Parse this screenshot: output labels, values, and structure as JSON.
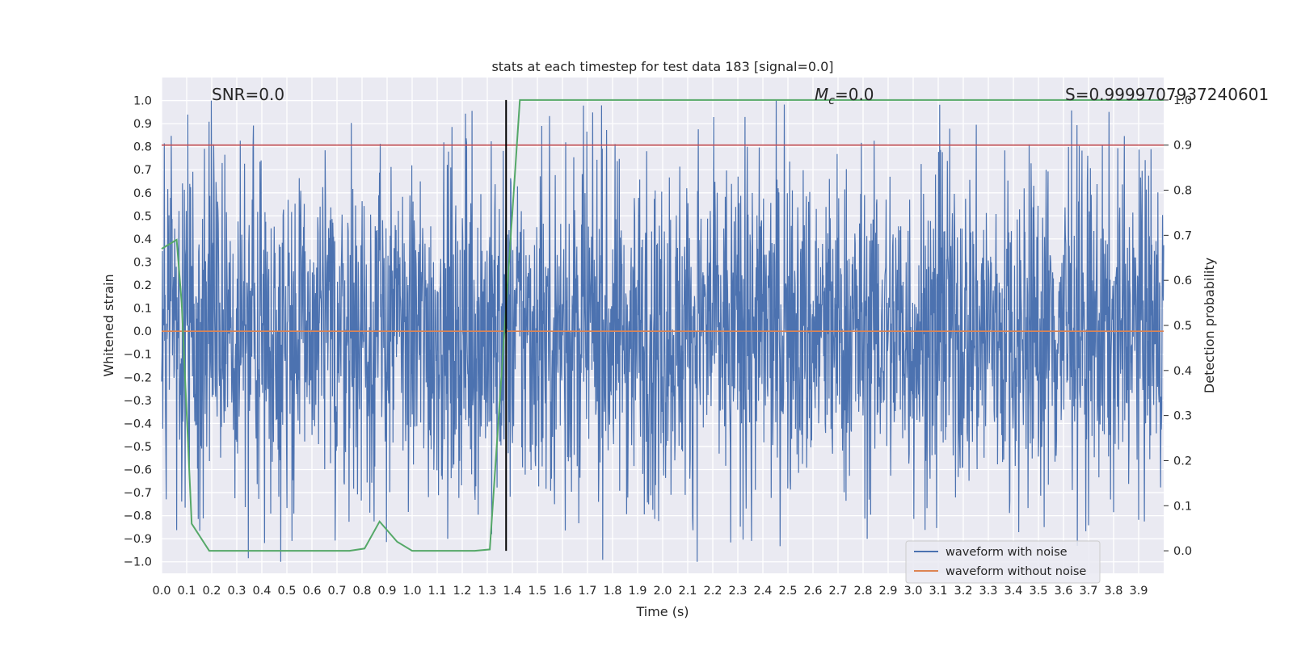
{
  "chart_data": {
    "type": "line",
    "title": "stats at each timestep for test data 183 [signal=0.0]",
    "xlabel": "Time (s)",
    "ylabel": "Whitened strain",
    "y2label": "Detection probability",
    "xlim": [
      0.0,
      4.0
    ],
    "ylim": [
      -1.05,
      1.1
    ],
    "y2lim": [
      -0.05,
      1.05
    ],
    "grid": true,
    "legend": "lower-right",
    "x_ticks": [
      "0.0",
      "0.1",
      "0.2",
      "0.3",
      "0.4",
      "0.5",
      "0.6",
      "0.7",
      "0.8",
      "0.9",
      "1.0",
      "1.1",
      "1.2",
      "1.3",
      "1.4",
      "1.5",
      "1.6",
      "1.7",
      "1.8",
      "1.9",
      "2.0",
      "2.1",
      "2.2",
      "2.3",
      "2.4",
      "2.5",
      "2.6",
      "2.7",
      "2.8",
      "2.9",
      "3.0",
      "3.1",
      "3.2",
      "3.3",
      "3.4",
      "3.5",
      "3.6",
      "3.7",
      "3.8",
      "3.9"
    ],
    "y_ticks": [
      "1.0",
      "0.9",
      "0.8",
      "0.7",
      "0.6",
      "0.5",
      "0.4",
      "0.3",
      "0.2",
      "0.1",
      "0.0",
      "−0.1",
      "−0.2",
      "−0.3",
      "−0.4",
      "−0.5",
      "−0.6",
      "−0.7",
      "−0.8",
      "−0.9",
      "−1.0"
    ],
    "y2_ticks": [
      "1.0",
      "0.9",
      "0.8",
      "0.7",
      "0.6",
      "0.5",
      "0.4",
      "0.3",
      "0.2",
      "0.1",
      "0.0"
    ],
    "annotations": {
      "snr": "SNR=0.0",
      "mc_symbol": "M",
      "mc_sub": "c",
      "mc_value": "=0.0",
      "s_value": "S=0.9999707937240601"
    },
    "series": [
      {
        "name": "waveform with noise",
        "color": "#4c72b0",
        "axis": "left",
        "kind": "noise",
        "x_range": [
          0.0,
          4.0
        ],
        "amplitude_range": [
          -1.0,
          1.0
        ]
      },
      {
        "name": "waveform without noise",
        "color": "#dd8452",
        "axis": "left",
        "x": [
          0.0,
          4.0
        ],
        "y": [
          0.0,
          0.0
        ]
      },
      {
        "name": "",
        "color": "#55a868",
        "axis": "right",
        "x": [
          0.0,
          0.06,
          0.08,
          0.12,
          0.19,
          0.25,
          0.5,
          0.75,
          0.81,
          0.87,
          0.94,
          1.0,
          1.25,
          1.31,
          1.37,
          1.43,
          1.5,
          2.0,
          3.0,
          4.0
        ],
        "y": [
          0.67,
          0.69,
          0.55,
          0.06,
          0.0,
          0.0,
          0.0,
          0.0,
          0.005,
          0.065,
          0.02,
          0.0,
          0.0,
          0.003,
          0.5,
          1.0,
          1.0,
          1.0,
          1.0,
          1.0
        ]
      }
    ],
    "threshold_line": {
      "axis": "right",
      "y": 0.9,
      "color": "#c44e52"
    },
    "marker_line": {
      "x": 1.375,
      "color": "#000000"
    }
  }
}
